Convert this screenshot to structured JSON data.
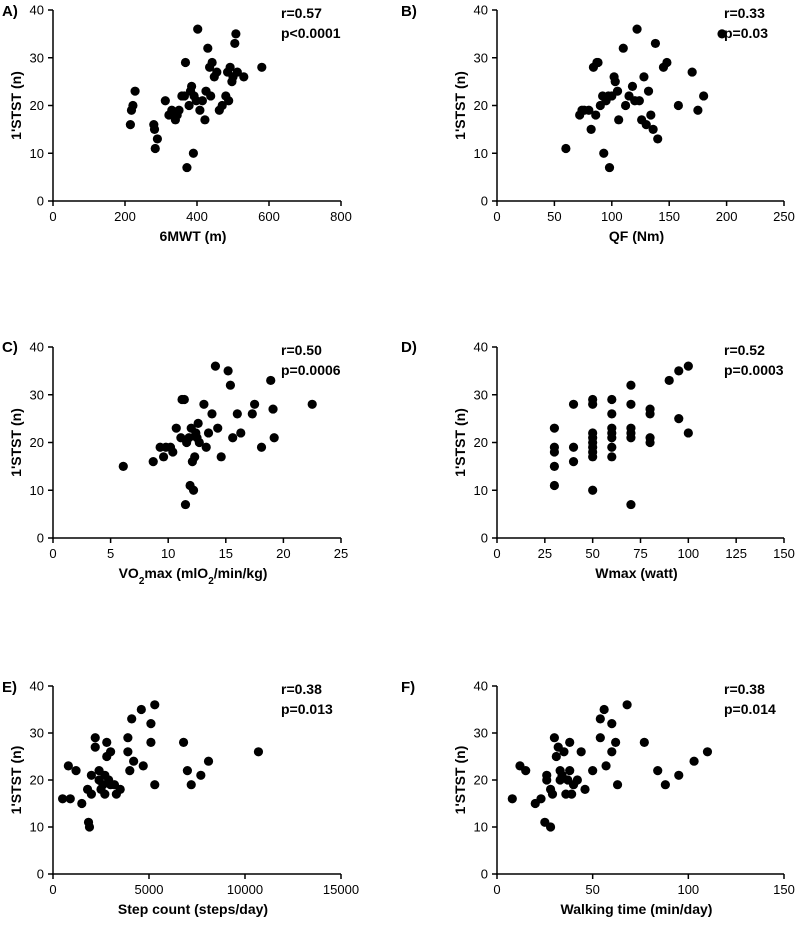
{
  "chart_data": [
    {
      "type": "scatter",
      "panel": "A)",
      "xlabel": "6MWT (m)",
      "ylabel": "1'STST (n)",
      "xlim": [
        0,
        800
      ],
      "ylim": [
        0,
        40
      ],
      "xticks": [
        "0",
        "200",
        "400",
        "600",
        "800"
      ],
      "yticks": [
        "0",
        "10",
        "20",
        "30",
        "40"
      ],
      "xtick_values": [
        0,
        200,
        400,
        600,
        800
      ],
      "ytick_values": [
        0,
        10,
        20,
        30,
        40
      ],
      "annotation": [
        "r=0.57",
        "p<0.0001"
      ],
      "points": [
        [
          215,
          16
        ],
        [
          218,
          19
        ],
        [
          222,
          20
        ],
        [
          228,
          23
        ],
        [
          280,
          16
        ],
        [
          282,
          15
        ],
        [
          284,
          11
        ],
        [
          290,
          13
        ],
        [
          312,
          21
        ],
        [
          322,
          18
        ],
        [
          330,
          19
        ],
        [
          340,
          17
        ],
        [
          345,
          18
        ],
        [
          350,
          19
        ],
        [
          358,
          22
        ],
        [
          365,
          22
        ],
        [
          368,
          29
        ],
        [
          372,
          7
        ],
        [
          378,
          20
        ],
        [
          382,
          23
        ],
        [
          385,
          24
        ],
        [
          390,
          10
        ],
        [
          392,
          22
        ],
        [
          398,
          21
        ],
        [
          402,
          36
        ],
        [
          408,
          19
        ],
        [
          415,
          21
        ],
        [
          422,
          17
        ],
        [
          425,
          23
        ],
        [
          430,
          32
        ],
        [
          435,
          28
        ],
        [
          438,
          22
        ],
        [
          442,
          29
        ],
        [
          448,
          26
        ],
        [
          455,
          27
        ],
        [
          462,
          19
        ],
        [
          470,
          20
        ],
        [
          480,
          22
        ],
        [
          485,
          27
        ],
        [
          488,
          21
        ],
        [
          492,
          28
        ],
        [
          497,
          25
        ],
        [
          500,
          26
        ],
        [
          505,
          33
        ],
        [
          508,
          35
        ],
        [
          512,
          27
        ],
        [
          530,
          26
        ],
        [
          580,
          28
        ]
      ]
    },
    {
      "type": "scatter",
      "panel": "B)",
      "xlabel": "QF (Nm)",
      "ylabel": "1'STST (n)",
      "xlim": [
        0,
        250
      ],
      "ylim": [
        0,
        40
      ],
      "xticks": [
        "0",
        "50",
        "100",
        "150",
        "200",
        "250"
      ],
      "yticks": [
        "0",
        "10",
        "20",
        "30",
        "40"
      ],
      "xtick_values": [
        0,
        50,
        100,
        150,
        200,
        250
      ],
      "ytick_values": [
        0,
        10,
        20,
        30,
        40
      ],
      "annotation": [
        "r=0.33",
        "p=0.03"
      ],
      "points": [
        [
          60,
          11
        ],
        [
          72,
          18
        ],
        [
          74,
          19
        ],
        [
          76,
          19
        ],
        [
          80,
          19
        ],
        [
          82,
          15
        ],
        [
          84,
          28
        ],
        [
          86,
          18
        ],
        [
          87,
          29
        ],
        [
          88,
          29
        ],
        [
          90,
          20
        ],
        [
          92,
          22
        ],
        [
          93,
          10
        ],
        [
          95,
          21
        ],
        [
          97,
          22
        ],
        [
          98,
          7
        ],
        [
          100,
          22
        ],
        [
          102,
          26
        ],
        [
          103,
          25
        ],
        [
          105,
          23
        ],
        [
          106,
          17
        ],
        [
          110,
          32
        ],
        [
          112,
          20
        ],
        [
          115,
          22
        ],
        [
          118,
          24
        ],
        [
          120,
          21
        ],
        [
          122,
          36
        ],
        [
          124,
          21
        ],
        [
          126,
          17
        ],
        [
          128,
          26
        ],
        [
          130,
          16
        ],
        [
          132,
          23
        ],
        [
          134,
          18
        ],
        [
          136,
          15
        ],
        [
          138,
          33
        ],
        [
          140,
          13
        ],
        [
          145,
          28
        ],
        [
          148,
          29
        ],
        [
          158,
          20
        ],
        [
          170,
          27
        ],
        [
          175,
          19
        ],
        [
          180,
          22
        ],
        [
          196,
          35
        ]
      ]
    },
    {
      "type": "scatter",
      "panel": "C)",
      "xlabel": "VO₂max (mlO₂/min/kg)",
      "ylabel": "1'STST (n)",
      "xlim": [
        0,
        25
      ],
      "ylim": [
        0,
        40
      ],
      "xticks": [
        "0",
        "5",
        "10",
        "15",
        "20",
        "25"
      ],
      "yticks": [
        "0",
        "10",
        "20",
        "30",
        "40"
      ],
      "xtick_values": [
        0,
        5,
        10,
        15,
        20,
        25
      ],
      "ytick_values": [
        0,
        10,
        20,
        30,
        40
      ],
      "annotation": [
        "r=0.50",
        "p=0.0006"
      ],
      "points": [
        [
          6.1,
          15
        ],
        [
          8.7,
          16
        ],
        [
          9.3,
          19
        ],
        [
          9.6,
          17
        ],
        [
          9.8,
          19
        ],
        [
          10.2,
          19
        ],
        [
          10.4,
          18
        ],
        [
          10.7,
          23
        ],
        [
          11.1,
          21
        ],
        [
          11.2,
          29
        ],
        [
          11.4,
          29
        ],
        [
          11.5,
          7
        ],
        [
          11.6,
          20
        ],
        [
          11.8,
          21
        ],
        [
          11.9,
          11
        ],
        [
          12.0,
          23
        ],
        [
          12.1,
          16
        ],
        [
          12.2,
          10
        ],
        [
          12.3,
          17
        ],
        [
          12.4,
          22
        ],
        [
          12.5,
          21
        ],
        [
          12.6,
          24
        ],
        [
          12.7,
          20
        ],
        [
          13.1,
          28
        ],
        [
          13.3,
          19
        ],
        [
          13.5,
          22
        ],
        [
          13.8,
          26
        ],
        [
          14.1,
          36
        ],
        [
          14.3,
          23
        ],
        [
          14.6,
          17
        ],
        [
          15.2,
          35
        ],
        [
          15.4,
          32
        ],
        [
          15.6,
          21
        ],
        [
          16.0,
          26
        ],
        [
          16.3,
          22
        ],
        [
          17.3,
          26
        ],
        [
          17.5,
          28
        ],
        [
          18.1,
          19
        ],
        [
          18.9,
          33
        ],
        [
          19.1,
          27
        ],
        [
          19.2,
          21
        ],
        [
          22.5,
          28
        ]
      ]
    },
    {
      "type": "scatter",
      "panel": "D)",
      "xlabel": "Wmax (watt)",
      "ylabel": "1'STST (n)",
      "xlim": [
        0,
        150
      ],
      "ylim": [
        0,
        40
      ],
      "xticks": [
        "0",
        "25",
        "50",
        "75",
        "100",
        "125",
        "150"
      ],
      "yticks": [
        "0",
        "10",
        "20",
        "30",
        "40"
      ],
      "xtick_values": [
        0,
        25,
        50,
        75,
        100,
        125,
        150
      ],
      "ytick_values": [
        0,
        10,
        20,
        30,
        40
      ],
      "annotation": [
        "r=0.52",
        "p=0.0003"
      ],
      "points": [
        [
          30,
          11
        ],
        [
          30,
          15
        ],
        [
          30,
          18
        ],
        [
          30,
          19
        ],
        [
          30,
          23
        ],
        [
          40,
          16
        ],
        [
          40,
          19
        ],
        [
          40,
          28
        ],
        [
          50,
          10
        ],
        [
          50,
          17
        ],
        [
          50,
          18
        ],
        [
          50,
          19
        ],
        [
          50,
          20
        ],
        [
          50,
          21
        ],
        [
          50,
          22
        ],
        [
          50,
          28
        ],
        [
          50,
          29
        ],
        [
          60,
          17
        ],
        [
          60,
          19
        ],
        [
          60,
          21
        ],
        [
          60,
          22
        ],
        [
          60,
          23
        ],
        [
          60,
          26
        ],
        [
          60,
          29
        ],
        [
          70,
          7
        ],
        [
          70,
          21
        ],
        [
          70,
          22
        ],
        [
          70,
          23
        ],
        [
          70,
          28
        ],
        [
          70,
          32
        ],
        [
          80,
          20
        ],
        [
          80,
          21
        ],
        [
          80,
          26
        ],
        [
          80,
          27
        ],
        [
          90,
          33
        ],
        [
          95,
          25
        ],
        [
          95,
          35
        ],
        [
          100,
          22
        ],
        [
          100,
          36
        ]
      ]
    },
    {
      "type": "scatter",
      "panel": "E)",
      "xlabel": "Step count (steps/day)",
      "ylabel": "1'STST (n)",
      "xlim": [
        0,
        15000
      ],
      "ylim": [
        0,
        40
      ],
      "xticks": [
        "0",
        "5000",
        "10000",
        "15000"
      ],
      "yticks": [
        "0",
        "10",
        "20",
        "30",
        "40"
      ],
      "xtick_values": [
        0,
        5000,
        10000,
        15000
      ],
      "ytick_values": [
        0,
        10,
        20,
        30,
        40
      ],
      "annotation": [
        "r=0.38",
        "p=0.013"
      ],
      "points": [
        [
          500,
          16
        ],
        [
          800,
          23
        ],
        [
          900,
          16
        ],
        [
          1200,
          22
        ],
        [
          1500,
          15
        ],
        [
          1800,
          18
        ],
        [
          1850,
          11
        ],
        [
          1900,
          10
        ],
        [
          2000,
          17
        ],
        [
          2000,
          21
        ],
        [
          2200,
          27
        ],
        [
          2200,
          29
        ],
        [
          2400,
          20
        ],
        [
          2400,
          22
        ],
        [
          2500,
          18
        ],
        [
          2600,
          19
        ],
        [
          2700,
          17
        ],
        [
          2700,
          21
        ],
        [
          2800,
          25
        ],
        [
          2800,
          28
        ],
        [
          2900,
          20
        ],
        [
          3000,
          19
        ],
        [
          3000,
          26
        ],
        [
          3200,
          19
        ],
        [
          3300,
          17
        ],
        [
          3500,
          18
        ],
        [
          3900,
          26
        ],
        [
          3900,
          29
        ],
        [
          4000,
          22
        ],
        [
          4100,
          33
        ],
        [
          4200,
          24
        ],
        [
          4600,
          35
        ],
        [
          4700,
          23
        ],
        [
          5100,
          28
        ],
        [
          5100,
          32
        ],
        [
          5300,
          19
        ],
        [
          5300,
          36
        ],
        [
          6800,
          28
        ],
        [
          7000,
          22
        ],
        [
          7200,
          19
        ],
        [
          7700,
          21
        ],
        [
          8100,
          24
        ],
        [
          10700,
          26
        ]
      ]
    },
    {
      "type": "scatter",
      "panel": "F)",
      "xlabel": "Walking time (min/day)",
      "ylabel": "1'STST (n)",
      "xlim": [
        0,
        150
      ],
      "ylim": [
        0,
        40
      ],
      "xticks": [
        "0",
        "50",
        "100",
        "150"
      ],
      "yticks": [
        "0",
        "10",
        "20",
        "30",
        "40"
      ],
      "xtick_values": [
        0,
        50,
        100,
        150
      ],
      "ytick_values": [
        0,
        10,
        20,
        30,
        40
      ],
      "annotation": [
        "r=0.38",
        "p=0.014"
      ],
      "points": [
        [
          8,
          16
        ],
        [
          12,
          23
        ],
        [
          15,
          22
        ],
        [
          20,
          15
        ],
        [
          23,
          16
        ],
        [
          25,
          11
        ],
        [
          26,
          20
        ],
        [
          26,
          21
        ],
        [
          28,
          10
        ],
        [
          28,
          18
        ],
        [
          29,
          17
        ],
        [
          30,
          29
        ],
        [
          31,
          25
        ],
        [
          32,
          27
        ],
        [
          33,
          20
        ],
        [
          33,
          22
        ],
        [
          34,
          21
        ],
        [
          35,
          26
        ],
        [
          36,
          17
        ],
        [
          37,
          20
        ],
        [
          38,
          22
        ],
        [
          38,
          28
        ],
        [
          39,
          17
        ],
        [
          40,
          19
        ],
        [
          42,
          20
        ],
        [
          44,
          26
        ],
        [
          46,
          18
        ],
        [
          50,
          22
        ],
        [
          54,
          29
        ],
        [
          54,
          33
        ],
        [
          56,
          35
        ],
        [
          57,
          23
        ],
        [
          60,
          26
        ],
        [
          60,
          32
        ],
        [
          62,
          28
        ],
        [
          63,
          19
        ],
        [
          68,
          36
        ],
        [
          77,
          28
        ],
        [
          84,
          22
        ],
        [
          88,
          19
        ],
        [
          95,
          21
        ],
        [
          103,
          24
        ],
        [
          110,
          26
        ]
      ]
    }
  ]
}
